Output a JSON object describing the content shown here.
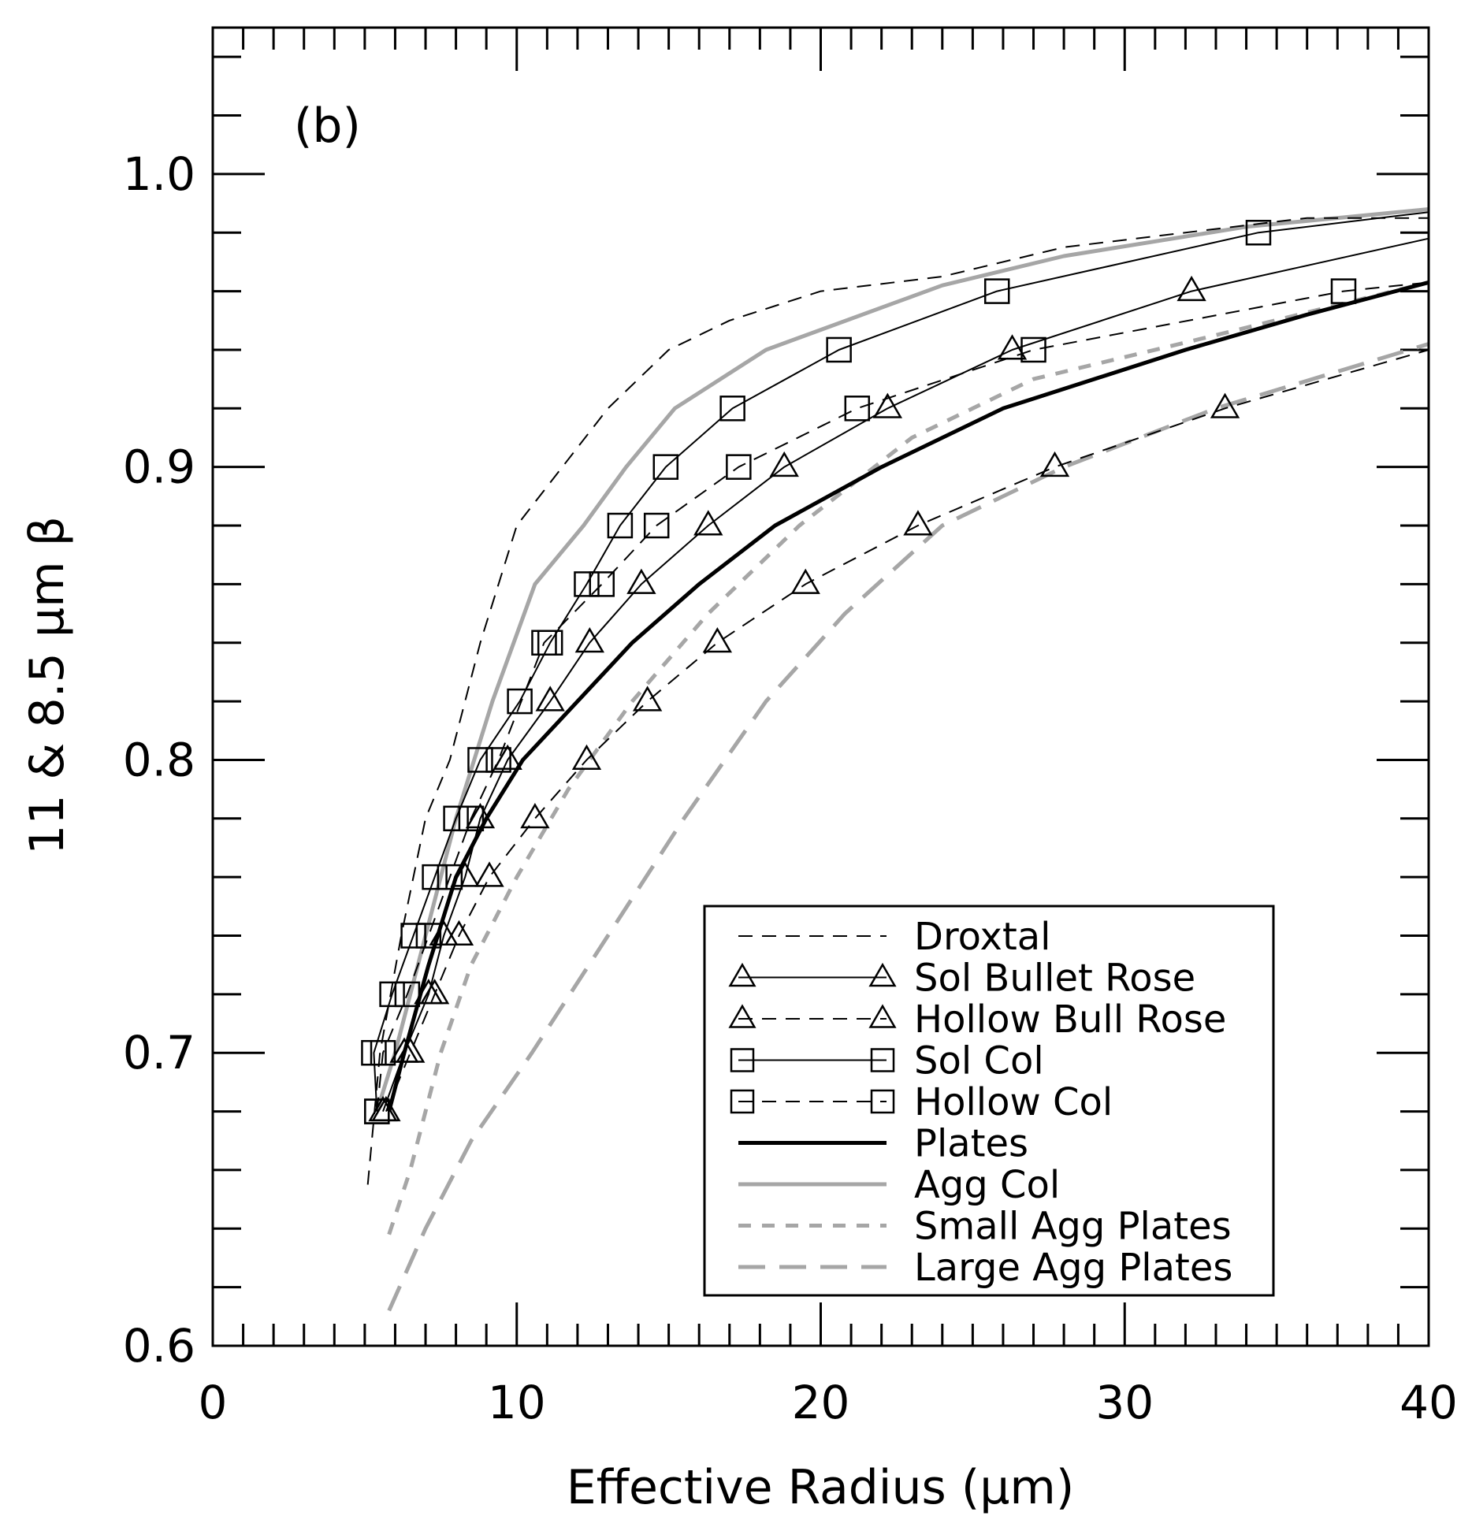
{
  "chart_data": {
    "type": "line",
    "panel_label": "(b)",
    "xlabel": "Effective Radius (μm)",
    "ylabel": "11 & 8.5 μm β",
    "xlim": [
      0,
      40
    ],
    "ylim": [
      0.6,
      1.05
    ],
    "x_ticks": [
      "0",
      "10",
      "20",
      "30",
      "40"
    ],
    "y_ticks": [
      "0.6",
      "0.7",
      "0.8",
      "0.9",
      "1.0"
    ],
    "legend_position": "lower-right",
    "series": [
      {
        "name": "Droxtal",
        "color": "#000000",
        "dash": "dashed",
        "marker": "none",
        "weight": "thin",
        "points": [
          [
            5.1,
            0.655
          ],
          [
            5.5,
            0.7
          ],
          [
            6.2,
            0.74
          ],
          [
            7,
            0.78
          ],
          [
            7.8,
            0.8
          ],
          [
            8.8,
            0.84
          ],
          [
            10,
            0.88
          ],
          [
            11.5,
            0.9
          ],
          [
            13,
            0.92
          ],
          [
            15,
            0.94
          ],
          [
            17,
            0.95
          ],
          [
            20,
            0.96
          ],
          [
            24,
            0.965
          ],
          [
            28,
            0.975
          ],
          [
            32,
            0.98
          ],
          [
            36,
            0.985
          ],
          [
            40,
            0.985
          ]
        ]
      },
      {
        "name": "Sol Bullet Rose",
        "color": "#000000",
        "dash": "solid",
        "marker": "triangle",
        "weight": "thin",
        "points": [
          [
            5.6,
            0.68
          ],
          [
            6.3,
            0.7
          ],
          [
            7.1,
            0.72
          ],
          [
            7.6,
            0.74
          ],
          [
            8.3,
            0.76
          ],
          [
            8.8,
            0.78
          ],
          [
            9.7,
            0.8
          ],
          [
            11.1,
            0.82
          ],
          [
            12.4,
            0.84
          ],
          [
            14.1,
            0.86
          ],
          [
            16.3,
            0.88
          ],
          [
            18.8,
            0.9
          ],
          [
            22.2,
            0.92
          ],
          [
            26.3,
            0.94
          ],
          [
            32.2,
            0.96
          ],
          [
            40,
            0.978
          ]
        ]
      },
      {
        "name": "Hollow Bull Rose",
        "color": "#000000",
        "dash": "dashed",
        "marker": "triangle",
        "weight": "thin",
        "points": [
          [
            5.7,
            0.68
          ],
          [
            6.5,
            0.7
          ],
          [
            7.3,
            0.72
          ],
          [
            8.1,
            0.74
          ],
          [
            9.1,
            0.76
          ],
          [
            10.6,
            0.78
          ],
          [
            12.3,
            0.8
          ],
          [
            14.3,
            0.82
          ],
          [
            16.6,
            0.84
          ],
          [
            19.5,
            0.86
          ],
          [
            23.2,
            0.88
          ],
          [
            27.7,
            0.9
          ],
          [
            33.3,
            0.92
          ],
          [
            40,
            0.94
          ]
        ]
      },
      {
        "name": "Sol Col",
        "color": "#000000",
        "dash": "solid",
        "marker": "square",
        "weight": "thin",
        "points": [
          [
            5.4,
            0.68
          ],
          [
            5.3,
            0.7
          ],
          [
            5.9,
            0.72
          ],
          [
            6.6,
            0.74
          ],
          [
            7.3,
            0.76
          ],
          [
            8,
            0.78
          ],
          [
            8.8,
            0.8
          ],
          [
            10.1,
            0.82
          ],
          [
            11.1,
            0.84
          ],
          [
            12.3,
            0.86
          ],
          [
            13.4,
            0.88
          ],
          [
            14.9,
            0.9
          ],
          [
            17.1,
            0.92
          ],
          [
            20.6,
            0.94
          ],
          [
            25.8,
            0.96
          ],
          [
            34.4,
            0.98
          ],
          [
            40,
            0.987
          ]
        ]
      },
      {
        "name": "Hollow Col",
        "color": "#000000",
        "dash": "dashed",
        "marker": "square",
        "weight": "thin",
        "points": [
          [
            5.4,
            0.68
          ],
          [
            5.6,
            0.7
          ],
          [
            6.4,
            0.72
          ],
          [
            7.1,
            0.74
          ],
          [
            7.8,
            0.76
          ],
          [
            8.5,
            0.78
          ],
          [
            9.4,
            0.8
          ],
          [
            10.9,
            0.84
          ],
          [
            12.8,
            0.86
          ],
          [
            14.6,
            0.88
          ],
          [
            17.3,
            0.9
          ],
          [
            21.2,
            0.92
          ],
          [
            27,
            0.94
          ],
          [
            37.2,
            0.96
          ],
          [
            40,
            0.963
          ]
        ]
      },
      {
        "name": "Plates",
        "color": "#000000",
        "dash": "solid",
        "marker": "none",
        "weight": "thick",
        "points": [
          [
            5.8,
            0.68
          ],
          [
            6.3,
            0.7
          ],
          [
            7.1,
            0.73
          ],
          [
            8,
            0.76
          ],
          [
            9,
            0.78
          ],
          [
            10.2,
            0.8
          ],
          [
            12,
            0.82
          ],
          [
            13.8,
            0.84
          ],
          [
            16,
            0.86
          ],
          [
            18.5,
            0.88
          ],
          [
            22,
            0.9
          ],
          [
            26,
            0.92
          ],
          [
            32,
            0.94
          ],
          [
            36,
            0.952
          ],
          [
            40,
            0.963
          ]
        ]
      },
      {
        "name": "Agg Col",
        "color": "#a6a6a6",
        "dash": "solid",
        "marker": "none",
        "weight": "thick",
        "points": [
          [
            5.4,
            0.68
          ],
          [
            6,
            0.7
          ],
          [
            7,
            0.74
          ],
          [
            8,
            0.78
          ],
          [
            9.2,
            0.82
          ],
          [
            10.6,
            0.86
          ],
          [
            12.2,
            0.88
          ],
          [
            13.6,
            0.9
          ],
          [
            15.2,
            0.92
          ],
          [
            18.2,
            0.94
          ],
          [
            24,
            0.962
          ],
          [
            28,
            0.972
          ],
          [
            34,
            0.982
          ],
          [
            40,
            0.988
          ]
        ]
      },
      {
        "name": "Small Agg Plates",
        "color": "#a6a6a6",
        "dash": "short-dashed",
        "marker": "none",
        "weight": "thick",
        "points": [
          [
            5.8,
            0.638
          ],
          [
            6.5,
            0.66
          ],
          [
            7.5,
            0.7
          ],
          [
            8.5,
            0.73
          ],
          [
            10,
            0.76
          ],
          [
            11.7,
            0.79
          ],
          [
            13.8,
            0.82
          ],
          [
            16.3,
            0.85
          ],
          [
            19.3,
            0.88
          ],
          [
            23,
            0.91
          ],
          [
            27,
            0.93
          ],
          [
            33,
            0.945
          ],
          [
            40,
            0.963
          ]
        ]
      },
      {
        "name": "Large Agg Plates",
        "color": "#a6a6a6",
        "dash": "long-dashed",
        "marker": "none",
        "weight": "thick",
        "points": [
          [
            5.8,
            0.612
          ],
          [
            7,
            0.64
          ],
          [
            8.5,
            0.67
          ],
          [
            10.5,
            0.7
          ],
          [
            13,
            0.74
          ],
          [
            15.5,
            0.78
          ],
          [
            18.2,
            0.82
          ],
          [
            20.8,
            0.85
          ],
          [
            24,
            0.88
          ],
          [
            28,
            0.9
          ],
          [
            33,
            0.92
          ],
          [
            40,
            0.942
          ]
        ]
      }
    ]
  }
}
